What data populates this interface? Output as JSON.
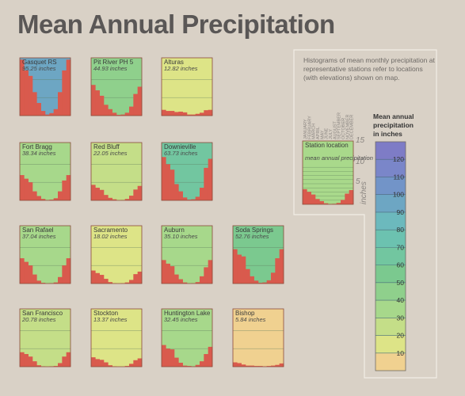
{
  "title": "Mean Annual Precipitation",
  "note": "Histograms of mean monthly precipitation at representative stations refer to locations (with elevations) shown on map.",
  "key": {
    "name": "Station location",
    "value": "mean annual precipitation",
    "months": [
      "JANUARY",
      "FEBRUARY",
      "MARCH",
      "APRIL",
      "MAY",
      "JUNE",
      "JULY",
      "AUGUST",
      "SEPTEMBER",
      "OCTOBER",
      "NOVEMBER",
      "DECEMBER"
    ],
    "scale_ticks": [
      "15",
      "10",
      "5"
    ],
    "scale_unit": "inches"
  },
  "legend": {
    "title": [
      "Mean annual",
      "precipitation",
      "in inches"
    ],
    "classes": [
      {
        "color": "#f0d190"
      },
      {
        "color": "#dde487"
      },
      {
        "color": "#c4de88"
      },
      {
        "color": "#a7d88b"
      },
      {
        "color": "#8fd08c"
      },
      {
        "color": "#7bc98f"
      },
      {
        "color": "#72c6a0"
      },
      {
        "color": "#6cc2b0"
      },
      {
        "color": "#6cb9bd"
      },
      {
        "color": "#6da6c3"
      },
      {
        "color": "#7294c8"
      },
      {
        "color": "#7a86c9"
      },
      {
        "color": "#7e7cc6"
      }
    ],
    "tick_labels": [
      "10",
      "20",
      "30",
      "40",
      "50",
      "60",
      "70",
      "80",
      "90",
      "100",
      "110",
      "120"
    ]
  },
  "chart_data": {
    "type": "bar",
    "title": "Mean Annual Precipitation",
    "ylabel": "inches",
    "ylim": [
      0,
      16
    ],
    "categories": [
      "JANUARY",
      "FEBRUARY",
      "MARCH",
      "APRIL",
      "MAY",
      "JUNE",
      "JULY",
      "AUGUST",
      "SEPTEMBER",
      "OCTOBER",
      "NOVEMBER",
      "DECEMBER"
    ],
    "series": [
      {
        "name": "Gasquet RS",
        "annual": "95.25 inches",
        "values": [
          15.5,
          12.5,
          11.0,
          6.5,
          3.5,
          1.3,
          0.3,
          0.7,
          1.8,
          6.5,
          12.5,
          15.5
        ]
      },
      {
        "name": "Pit River PH 5",
        "annual": "44.93 inches",
        "values": [
          8.5,
          7.0,
          5.5,
          3.0,
          1.8,
          0.8,
          0.2,
          0.3,
          0.8,
          2.5,
          6.0,
          8.0
        ]
      },
      {
        "name": "Alturas",
        "annual": "12.82 inches",
        "values": [
          1.6,
          1.3,
          1.3,
          1.0,
          1.1,
          0.9,
          0.3,
          0.3,
          0.5,
          0.8,
          1.5,
          1.6
        ]
      },
      {
        "name": "Fort Bragg",
        "annual": "38.34 inches",
        "values": [
          7.0,
          6.0,
          5.0,
          2.5,
          1.2,
          0.4,
          0.1,
          0.2,
          0.6,
          2.5,
          5.5,
          7.0
        ]
      },
      {
        "name": "Red Bluff",
        "annual": "22.05 inches",
        "values": [
          4.3,
          3.5,
          2.9,
          1.5,
          0.7,
          0.3,
          0.0,
          0.1,
          0.4,
          1.3,
          3.0,
          4.0
        ]
      },
      {
        "name": "Downieville",
        "annual": "63.73 inches",
        "values": [
          12.0,
          10.0,
          8.5,
          4.5,
          2.5,
          0.8,
          0.2,
          0.3,
          1.0,
          3.5,
          9.0,
          11.5
        ]
      },
      {
        "name": "San Rafael",
        "annual": "37.04 inches",
        "values": [
          7.0,
          6.0,
          5.0,
          2.5,
          0.8,
          0.2,
          0.0,
          0.1,
          0.3,
          1.8,
          5.0,
          7.0
        ]
      },
      {
        "name": "Sacramento",
        "annual": "18.02 inches",
        "values": [
          3.6,
          2.9,
          2.4,
          1.3,
          0.4,
          0.1,
          0.0,
          0.1,
          0.3,
          1.0,
          2.6,
          3.3
        ]
      },
      {
        "name": "Auburn",
        "annual": "35.10 inches",
        "values": [
          6.5,
          5.5,
          4.8,
          2.5,
          1.2,
          0.3,
          0.0,
          0.1,
          0.4,
          2.0,
          4.5,
          6.5
        ]
      },
      {
        "name": "Soda Springs",
        "annual": "52.76 inches",
        "values": [
          9.5,
          8.0,
          7.5,
          4.0,
          2.0,
          0.8,
          0.2,
          0.3,
          0.9,
          3.0,
          7.0,
          9.5
        ]
      },
      {
        "name": "San Francisco",
        "annual": "20.78 inches",
        "values": [
          4.0,
          3.5,
          2.8,
          1.5,
          0.4,
          0.1,
          0.0,
          0.1,
          0.2,
          1.0,
          2.8,
          4.0
        ]
      },
      {
        "name": "Stockton",
        "annual": "13.37 inches",
        "values": [
          2.6,
          2.1,
          1.9,
          1.2,
          0.4,
          0.1,
          0.0,
          0.0,
          0.2,
          0.8,
          1.8,
          2.3
        ]
      },
      {
        "name": "Huntington Lake",
        "annual": "32.45 inches",
        "values": [
          6.0,
          5.0,
          4.8,
          2.5,
          1.1,
          0.3,
          0.2,
          0.1,
          0.5,
          1.5,
          3.5,
          5.5
        ]
      },
      {
        "name": "Bishop",
        "annual": "5.84 inches",
        "values": [
          1.2,
          1.0,
          0.6,
          0.3,
          0.3,
          0.2,
          0.2,
          0.1,
          0.2,
          0.3,
          0.5,
          0.9
        ]
      }
    ]
  }
}
